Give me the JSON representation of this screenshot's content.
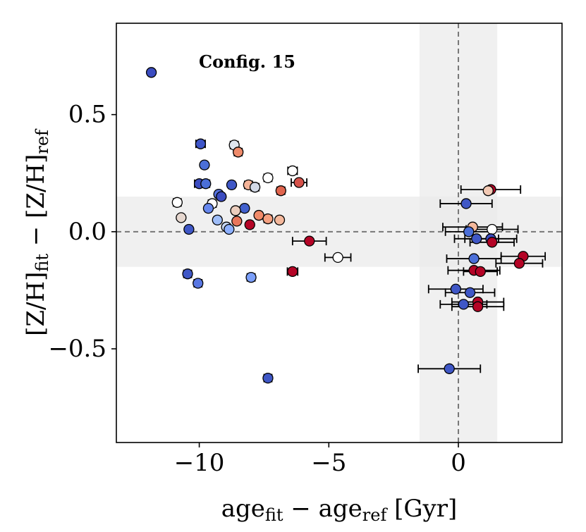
{
  "chart_data": {
    "type": "scatter",
    "title": "",
    "annotation": "Config. 15",
    "xlabel": {
      "base1": "age",
      "sub1": "fit",
      "mid": " − age",
      "sub2": "ref",
      "tail": " [Gyr]"
    },
    "ylabel": {
      "base1": "[Z/H]",
      "sub1": "fit",
      "mid": " − [Z/H]",
      "sub2": "ref"
    },
    "xlim": [
      -13.2,
      4.0
    ],
    "ylim": [
      -0.9,
      0.89
    ],
    "xticks": [
      -10,
      -5,
      0
    ],
    "xtick_labels": [
      "−10",
      "−5",
      "0"
    ],
    "yticks": [
      -0.5,
      0.0,
      0.5
    ],
    "ytick_labels": [
      "−0.5",
      "0.0",
      "0.5"
    ],
    "reference_lines": {
      "x": 0,
      "y": 0
    },
    "shaded_bands": {
      "x": [
        -1.5,
        1.5
      ],
      "y": [
        -0.15,
        0.15
      ]
    },
    "colors": {
      "band": "#ebebeb",
      "ref_line": "#777777",
      "errorbar": "#000000",
      "marker_edge": "#000000"
    },
    "points": [
      {
        "x": -11.85,
        "y": 0.68,
        "xerr": 0.0,
        "color": "#3b4cc0"
      },
      {
        "x": -9.95,
        "y": 0.375,
        "xerr": 0.18,
        "color": "#3e55c8"
      },
      {
        "x": -8.65,
        "y": 0.37,
        "xerr": 0.15,
        "color": "#dfe5ee"
      },
      {
        "x": -8.5,
        "y": 0.34,
        "xerr": 0.15,
        "color": "#ee8a6a"
      },
      {
        "x": -9.8,
        "y": 0.285,
        "xerr": 0.12,
        "color": "#4b6fd8"
      },
      {
        "x": -6.4,
        "y": 0.26,
        "xerr": 0.18,
        "color": "#ffffff"
      },
      {
        "x": -7.35,
        "y": 0.23,
        "xerr": 0.15,
        "color": "#ffffff"
      },
      {
        "x": -6.15,
        "y": 0.21,
        "xerr": 0.3,
        "color": "#d6524a"
      },
      {
        "x": -10.0,
        "y": 0.205,
        "xerr": 0.18,
        "color": "#3b4cc0"
      },
      {
        "x": -9.75,
        "y": 0.205,
        "xerr": 0.15,
        "color": "#4b6fd8"
      },
      {
        "x": -8.75,
        "y": 0.2,
        "xerr": 0.12,
        "color": "#3f57c6"
      },
      {
        "x": -8.1,
        "y": 0.2,
        "xerr": 0.15,
        "color": "#f4b398"
      },
      {
        "x": -7.85,
        "y": 0.19,
        "xerr": 0.15,
        "color": "#d3d9e6"
      },
      {
        "x": -6.85,
        "y": 0.175,
        "xerr": 0.15,
        "color": "#e0654e"
      },
      {
        "x": -9.25,
        "y": 0.16,
        "xerr": 0.12,
        "color": "#5572df"
      },
      {
        "x": -9.15,
        "y": 0.15,
        "xerr": 0.12,
        "color": "#3b4cc0"
      },
      {
        "x": -10.85,
        "y": 0.125,
        "xerr": 0.15,
        "color": "#ffffff"
      },
      {
        "x": -9.5,
        "y": 0.12,
        "xerr": 0.15,
        "color": "#ffffff"
      },
      {
        "x": -9.65,
        "y": 0.1,
        "xerr": 0.12,
        "color": "#6788ee"
      },
      {
        "x": -8.25,
        "y": 0.1,
        "xerr": 0.12,
        "color": "#4160cc"
      },
      {
        "x": -8.6,
        "y": 0.09,
        "xerr": 0.12,
        "color": "#ebcdbd"
      },
      {
        "x": -7.7,
        "y": 0.07,
        "xerr": 0.12,
        "color": "#f08b6a"
      },
      {
        "x": -10.7,
        "y": 0.06,
        "xerr": 0.0,
        "color": "#e6d7cf"
      },
      {
        "x": -9.3,
        "y": 0.05,
        "xerr": 0.12,
        "color": "#9ebdf8"
      },
      {
        "x": -8.55,
        "y": 0.045,
        "xerr": 0.12,
        "color": "#e8765b"
      },
      {
        "x": -7.35,
        "y": 0.055,
        "xerr": 0.15,
        "color": "#f4a080"
      },
      {
        "x": -6.9,
        "y": 0.05,
        "xerr": 0.12,
        "color": "#f4b89c"
      },
      {
        "x": -8.05,
        "y": 0.03,
        "xerr": 0.12,
        "color": "#b40426"
      },
      {
        "x": -8.95,
        "y": 0.02,
        "xerr": 0.12,
        "color": "#c5d6f2"
      },
      {
        "x": -8.85,
        "y": 0.01,
        "xerr": 0.0,
        "color": "#8caffe"
      },
      {
        "x": -10.4,
        "y": 0.01,
        "xerr": 0.12,
        "color": "#3f57c6"
      },
      {
        "x": -5.75,
        "y": -0.04,
        "xerr": 0.65,
        "color": "#b40426"
      },
      {
        "x": -4.65,
        "y": -0.11,
        "xerr": 0.5,
        "color": "#ffffff"
      },
      {
        "x": -6.4,
        "y": -0.17,
        "xerr": 0.2,
        "color": "#b40426"
      },
      {
        "x": -10.45,
        "y": -0.18,
        "xerr": 0.15,
        "color": "#3f57c6"
      },
      {
        "x": -8.0,
        "y": -0.195,
        "xerr": 0.15,
        "color": "#7b9ff9"
      },
      {
        "x": -10.05,
        "y": -0.22,
        "xerr": 0.15,
        "color": "#5977e3"
      },
      {
        "x": -7.35,
        "y": -0.625,
        "xerr": 0.15,
        "color": "#3f57c6"
      },
      {
        "x": 1.25,
        "y": 0.18,
        "xerr": 1.15,
        "color": "#b40426"
      },
      {
        "x": 1.15,
        "y": 0.175,
        "xerr": 0.0,
        "color": "#f2c9b4"
      },
      {
        "x": 0.3,
        "y": 0.12,
        "xerr": 1.0,
        "color": "#3f57c6"
      },
      {
        "x": 0.55,
        "y": 0.02,
        "xerr": 1.15,
        "color": "#f4b89c"
      },
      {
        "x": 1.3,
        "y": 0.01,
        "xerr": 1.0,
        "color": "#ffffff"
      },
      {
        "x": 0.4,
        "y": 0.0,
        "xerr": 0.9,
        "color": "#4b6fd8"
      },
      {
        "x": 0.7,
        "y": -0.03,
        "xerr": 0.85,
        "color": "#3f57c6"
      },
      {
        "x": 1.25,
        "y": -0.03,
        "xerr": 1.0,
        "color": "#3b4cc0"
      },
      {
        "x": 1.3,
        "y": -0.045,
        "xerr": 0.85,
        "color": "#b40426"
      },
      {
        "x": 2.5,
        "y": -0.105,
        "xerr": 0.85,
        "color": "#b40426"
      },
      {
        "x": 0.6,
        "y": -0.115,
        "xerr": 1.05,
        "color": "#4b6fd8"
      },
      {
        "x": 2.35,
        "y": -0.135,
        "xerr": 0.9,
        "color": "#b40426"
      },
      {
        "x": 0.6,
        "y": -0.165,
        "xerr": 1.0,
        "color": "#b40426"
      },
      {
        "x": 0.85,
        "y": -0.17,
        "xerr": 0.65,
        "color": "#b40426"
      },
      {
        "x": -0.1,
        "y": -0.245,
        "xerr": 1.05,
        "color": "#3f57c6"
      },
      {
        "x": 0.45,
        "y": -0.26,
        "xerr": 0.95,
        "color": "#3f57c6"
      },
      {
        "x": 0.75,
        "y": -0.3,
        "xerr": 1.0,
        "color": "#b40426"
      },
      {
        "x": 0.2,
        "y": -0.31,
        "xerr": 0.9,
        "color": "#3f57c6"
      },
      {
        "x": 0.75,
        "y": -0.32,
        "xerr": 1.0,
        "color": "#b40426"
      },
      {
        "x": -0.35,
        "y": -0.585,
        "xerr": 1.2,
        "color": "#3f57c6"
      }
    ]
  }
}
